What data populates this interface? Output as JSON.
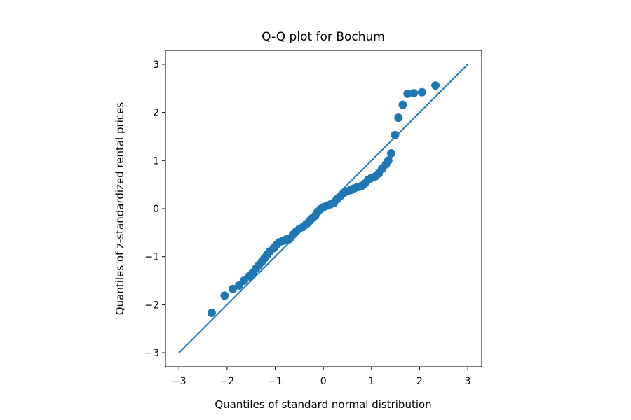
{
  "chart_data": {
    "type": "scatter",
    "title": "Q-Q plot for Bochum",
    "xlabel": "Quantiles of standard normal distribution",
    "ylabel": "Quantiles of z-standardized rental prices",
    "color": "#1f77b4",
    "x": [
      -2.32,
      -2.05,
      -1.88,
      -1.75,
      -1.65,
      -1.54,
      -1.47,
      -1.4,
      -1.34,
      -1.28,
      -1.22,
      -1.17,
      -1.11,
      -1.03,
      -0.98,
      -0.92,
      -0.84,
      -0.77,
      -0.7,
      -0.63,
      -0.57,
      -0.5,
      -0.42,
      -0.35,
      -0.29,
      -0.23,
      -0.17,
      -0.12,
      -0.06,
      0.0,
      0.07,
      0.15,
      0.22,
      0.29,
      0.35,
      0.42,
      0.5,
      0.57,
      0.64,
      0.71,
      0.79,
      0.86,
      0.93,
      1.0,
      1.08,
      1.15,
      1.22,
      1.3,
      1.35,
      1.41,
      1.49,
      1.56,
      1.65,
      1.75,
      1.88,
      2.05,
      2.33
    ],
    "values": [
      -2.17,
      -1.81,
      -1.67,
      -1.6,
      -1.5,
      -1.41,
      -1.34,
      -1.25,
      -1.18,
      -1.11,
      -1.03,
      -0.96,
      -0.89,
      -0.82,
      -0.76,
      -0.7,
      -0.67,
      -0.64,
      -0.63,
      -0.54,
      -0.48,
      -0.42,
      -0.38,
      -0.32,
      -0.26,
      -0.2,
      -0.15,
      -0.07,
      -0.01,
      0.03,
      0.06,
      0.09,
      0.12,
      0.2,
      0.26,
      0.32,
      0.36,
      0.39,
      0.42,
      0.45,
      0.47,
      0.52,
      0.6,
      0.64,
      0.67,
      0.73,
      0.83,
      0.92,
      1.0,
      1.15,
      1.53,
      1.89,
      2.16,
      2.39,
      2.4,
      2.42,
      2.56
    ],
    "reference_line": {
      "x": [
        -3,
        3
      ],
      "values": [
        -3,
        3
      ]
    },
    "xlim": [
      -3.28,
      3.29
    ],
    "ylim": [
      -3.29,
      3.29
    ],
    "xticks": [
      {
        "value": -3,
        "label": "−3"
      },
      {
        "value": -2,
        "label": "−2"
      },
      {
        "value": -1,
        "label": "−1"
      },
      0,
      1,
      2,
      3
    ],
    "yticks": [
      {
        "value": -3,
        "label": "−3"
      },
      {
        "value": -2,
        "label": "−2"
      },
      {
        "value": -1,
        "label": "−1"
      },
      0,
      1,
      2,
      3
    ]
  }
}
